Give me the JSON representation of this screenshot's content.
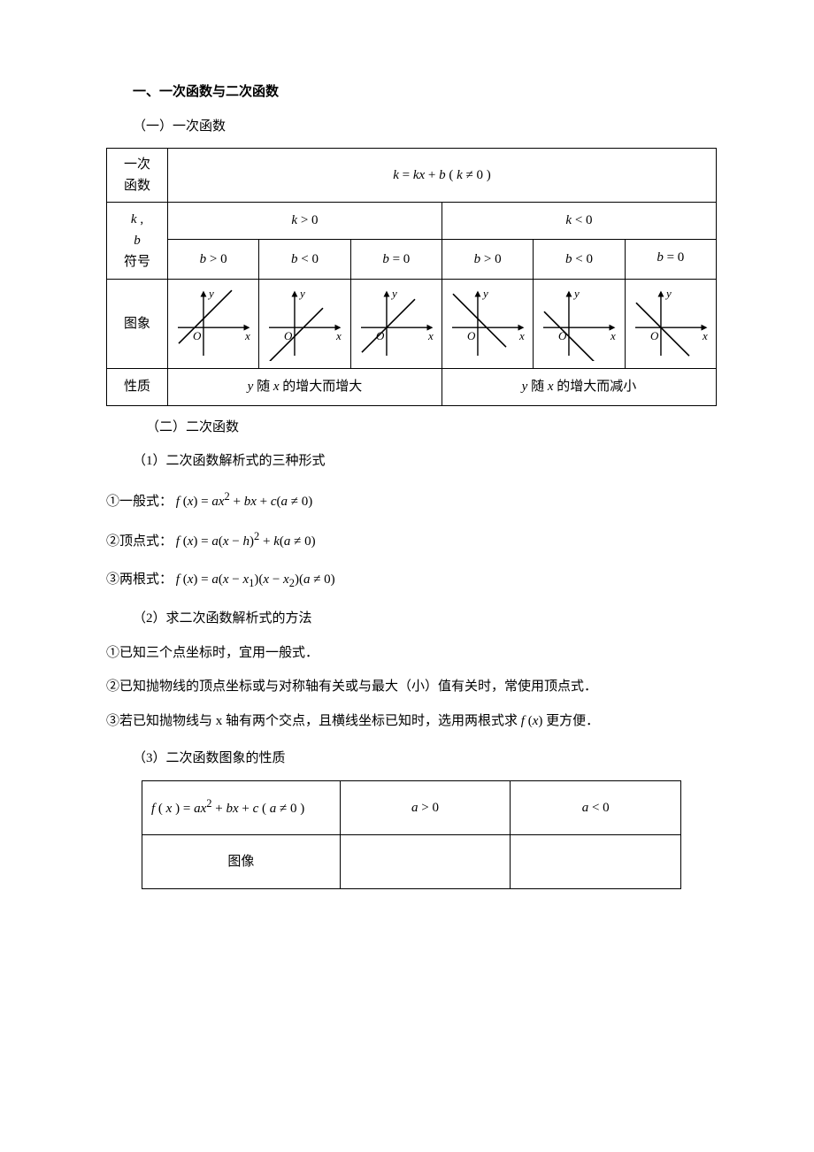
{
  "headings": {
    "h1": "一、一次函数与二次函数",
    "s1": "（一）一次函数",
    "s2": "（二）二次函数",
    "p1": "（1）二次函数解析式的三种形式",
    "p2": "（2）求二次函数解析式的方法",
    "p3": "（3）二次函数图象的性质"
  },
  "table1": {
    "row_labels": {
      "fn": "一次\n函数",
      "sign": "k ,\nb\n符号",
      "graph": "图象",
      "prop": "性质"
    },
    "fn_expr": "k = kx + b ( k ≠ 0 )",
    "k_pos": "k > 0",
    "k_neg": "k < 0",
    "b_pos": "b > 0",
    "b_neg": "b < 0",
    "b_zero": "b = 0",
    "prop_inc": "y 随 x 的增大而增大",
    "prop_dec": "y 随 x 的增大而减小",
    "axis_x": "x",
    "axis_y": "y",
    "axis_o": "O",
    "graphs": [
      {
        "slope": 1,
        "intercept": 10
      },
      {
        "slope": 1,
        "intercept": -10
      },
      {
        "slope": 1,
        "intercept": 0
      },
      {
        "slope": -1,
        "intercept": 10
      },
      {
        "slope": -1,
        "intercept": -10
      },
      {
        "slope": -1,
        "intercept": 0
      }
    ],
    "graph_style": {
      "w": 92,
      "h": 84,
      "axis_color": "#000000",
      "line_color": "#000000",
      "line_width": 1.6,
      "axis_width": 1.4
    }
  },
  "forms": {
    "general_label": "①一般式：",
    "general_expr": "f (x) = ax² + bx + c (a ≠ 0)",
    "vertex_label": "②顶点式：",
    "vertex_expr": "f (x) = a(x − h)² + k (a ≠ 0)",
    "roots_label": "③两根式：",
    "roots_expr": "f (x) = a(x − x₁)(x − x₂)(a ≠ 0)"
  },
  "methods": {
    "m1": "①已知三个点坐标时，宜用一般式．",
    "m2": "②已知抛物线的顶点坐标或与对称轴有关或与最大（小）值有关时，常使用顶点式．",
    "m3_pre": "③若已知抛物线与 x 轴有两个交点，且横线坐标已知时，选用两根式求 ",
    "m3_fx": "f (x)",
    "m3_post": " 更方便．"
  },
  "table2": {
    "head_expr": "f ( x ) = ax² + bx + c ( a ≠ 0 )",
    "a_pos": "a > 0",
    "a_neg": "a < 0",
    "row_img": "图像"
  }
}
